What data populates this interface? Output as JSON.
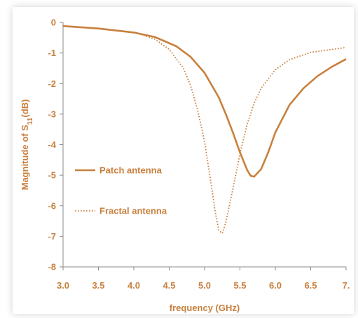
{
  "chart_data": {
    "type": "line",
    "title": "",
    "xlabel": "frequency (GHz)",
    "ylabel": "Magnitude of S11(dB)",
    "ylabel_parts": [
      "Magnitude of S",
      "11",
      "(dB)"
    ],
    "xlim": [
      3.0,
      7.0
    ],
    "ylim": [
      -8,
      0
    ],
    "xticks": [
      "3.0",
      "3.5",
      "4.0",
      "4.5",
      "5.0",
      "5.5",
      "6.0",
      "6.5",
      "7."
    ],
    "yticks": [
      "0",
      "-1",
      "-2",
      "-3",
      "-4",
      "-5",
      "-6",
      "-7",
      "-8"
    ],
    "grid": false,
    "legend_position": "left",
    "color": "#C8803E",
    "series": [
      {
        "name": "Patch antenna",
        "style": "solid",
        "x": [
          3.0,
          3.5,
          4.0,
          4.3,
          4.6,
          4.8,
          5.0,
          5.2,
          5.3,
          5.4,
          5.5,
          5.6,
          5.65,
          5.7,
          5.8,
          5.9,
          6.0,
          6.2,
          6.4,
          6.6,
          6.8,
          7.0
        ],
        "y": [
          -0.12,
          -0.2,
          -0.33,
          -0.48,
          -0.78,
          -1.12,
          -1.65,
          -2.45,
          -3.0,
          -3.6,
          -4.25,
          -4.82,
          -5.02,
          -5.05,
          -4.8,
          -4.25,
          -3.6,
          -2.7,
          -2.15,
          -1.75,
          -1.45,
          -1.2
        ]
      },
      {
        "name": "Fractal antenna",
        "style": "dotted",
        "x": [
          3.0,
          3.5,
          4.0,
          4.3,
          4.5,
          4.7,
          4.8,
          4.9,
          5.0,
          5.1,
          5.15,
          5.2,
          5.25,
          5.3,
          5.4,
          5.5,
          5.6,
          5.7,
          5.8,
          6.0,
          6.2,
          6.5,
          7.0
        ],
        "y": [
          -0.12,
          -0.2,
          -0.32,
          -0.55,
          -0.88,
          -1.5,
          -2.05,
          -2.85,
          -3.9,
          -5.4,
          -6.2,
          -6.8,
          -6.9,
          -6.55,
          -5.45,
          -4.3,
          -3.35,
          -2.65,
          -2.15,
          -1.55,
          -1.22,
          -0.98,
          -0.82
        ]
      }
    ]
  }
}
